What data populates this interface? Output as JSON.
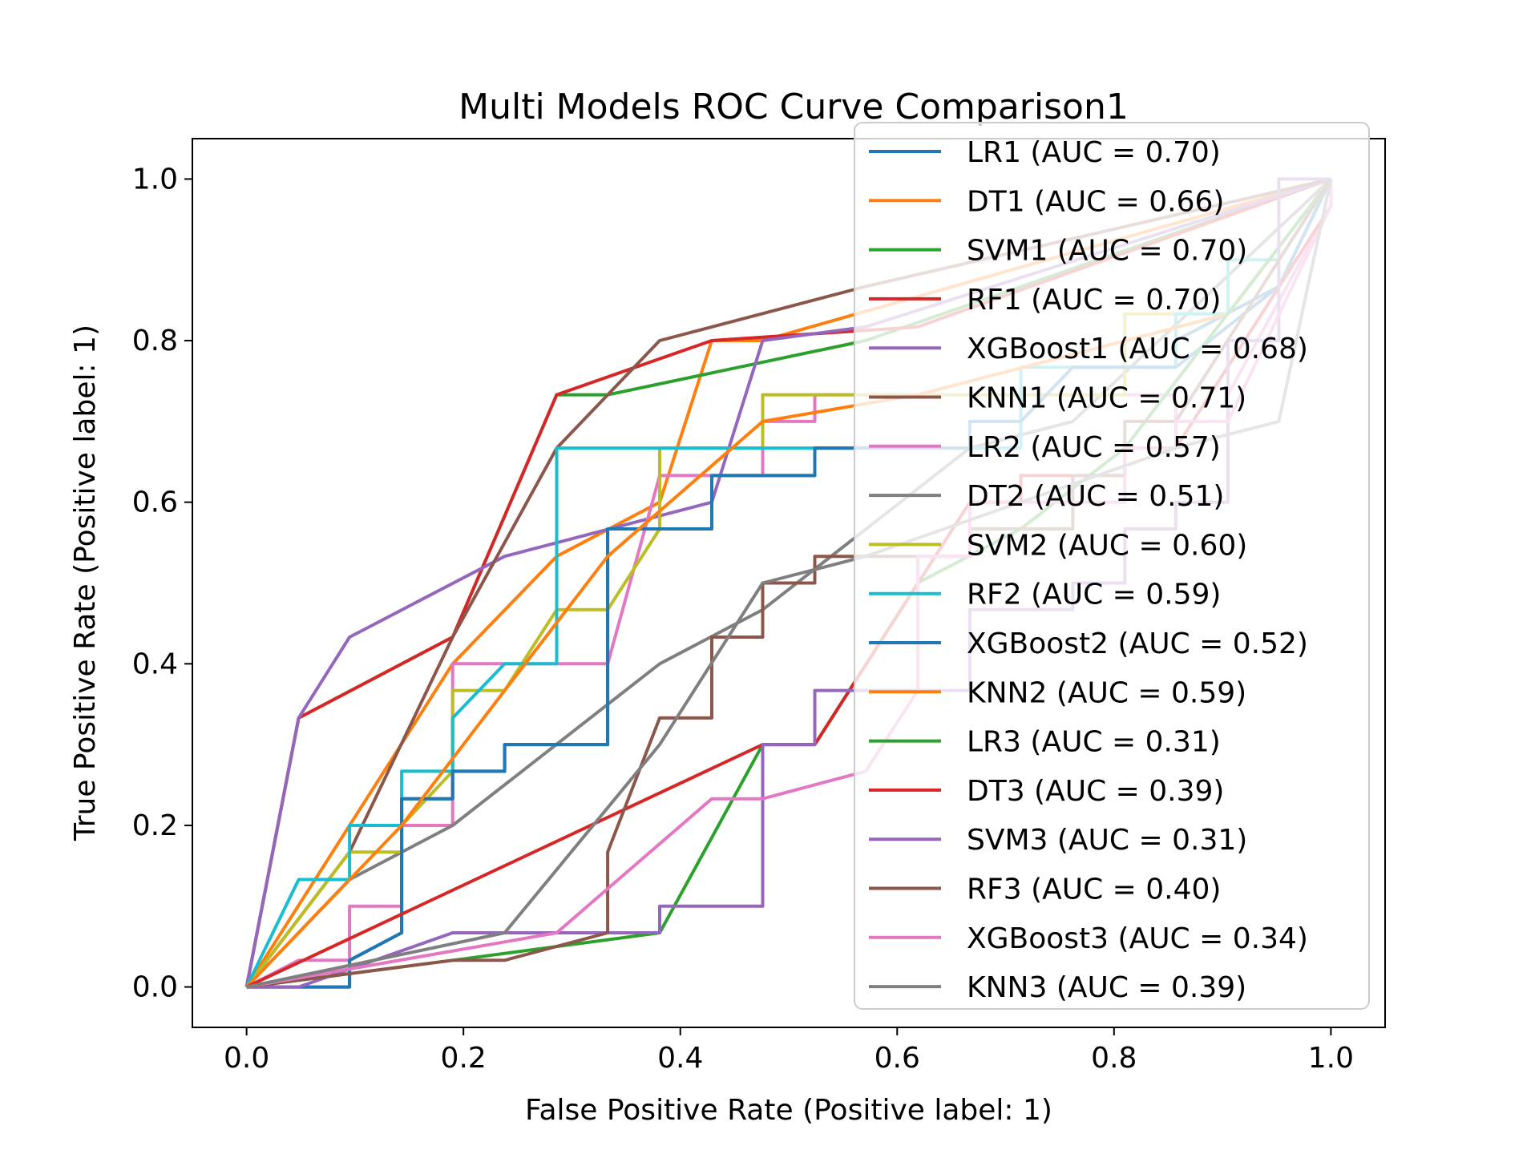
{
  "chart_data": {
    "type": "line",
    "title": "Multi Models ROC Curve Comparison1",
    "xlabel": "False Positive Rate (Positive label: 1)",
    "ylabel": "True Positive Rate (Positive label: 1)",
    "xlim": [
      -0.05,
      1.05
    ],
    "ylim": [
      -0.05,
      1.05
    ],
    "xticks": [
      "0.0",
      "0.2",
      "0.4",
      "0.6",
      "0.8",
      "1.0"
    ],
    "yticks": [
      "0.0",
      "0.2",
      "0.4",
      "0.6",
      "0.8",
      "1.0"
    ],
    "grid": false,
    "legend_position": "upper-right",
    "series": [
      {
        "name": "LR1 (AUC = 0.70)",
        "color": "#1f77b4",
        "points": [
          [
            0,
            0
          ],
          [
            0.048,
            0
          ],
          [
            0.095,
            0
          ],
          [
            0.095,
            0.033
          ],
          [
            0.143,
            0.067
          ],
          [
            0.143,
            0.233
          ],
          [
            0.19,
            0.233
          ],
          [
            0.19,
            0.267
          ],
          [
            0.238,
            0.267
          ],
          [
            0.238,
            0.3
          ],
          [
            0.333,
            0.3
          ],
          [
            0.333,
            0.567
          ],
          [
            0.429,
            0.567
          ],
          [
            0.429,
            0.633
          ],
          [
            0.524,
            0.633
          ],
          [
            0.524,
            0.667
          ],
          [
            0.714,
            0.667
          ],
          [
            0.714,
            0.7
          ],
          [
            0.762,
            0.767
          ],
          [
            0.857,
            0.767
          ],
          [
            0.857,
            0.8
          ],
          [
            0.952,
            0.867
          ],
          [
            1,
            1
          ]
        ]
      },
      {
        "name": "DT1 (AUC = 0.66)",
        "color": "#ff7f0e",
        "points": [
          [
            0,
            0
          ],
          [
            0.095,
            0.2
          ],
          [
            0.19,
            0.4
          ],
          [
            0.286,
            0.533
          ],
          [
            0.381,
            0.6
          ],
          [
            0.429,
            0.8
          ],
          [
            0.476,
            0.8
          ],
          [
            0.476,
            0.8
          ],
          [
            1,
            1
          ]
        ]
      },
      {
        "name": "SVM1 (AUC = 0.70)",
        "color": "#2ca02c",
        "points": [
          [
            0,
            0
          ],
          [
            0.048,
            0.333
          ],
          [
            0.19,
            0.433
          ],
          [
            0.286,
            0.733
          ],
          [
            0.333,
            0.733
          ],
          [
            0.571,
            0.8
          ],
          [
            1,
            1
          ]
        ]
      },
      {
        "name": "RF1 (AUC = 0.70)",
        "color": "#d62728",
        "points": [
          [
            0,
            0
          ],
          [
            0.048,
            0.333
          ],
          [
            0.19,
            0.433
          ],
          [
            0.286,
            0.733
          ],
          [
            0.429,
            0.8
          ],
          [
            0.619,
            0.817
          ],
          [
            1,
            1
          ]
        ]
      },
      {
        "name": "XGBoost1 (AUC = 0.68)",
        "color": "#9467bd",
        "points": [
          [
            0,
            0
          ],
          [
            0.048,
            0.333
          ],
          [
            0.095,
            0.433
          ],
          [
            0.238,
            0.533
          ],
          [
            0.429,
            0.6
          ],
          [
            0.476,
            0.8
          ],
          [
            0.571,
            0.817
          ],
          [
            1,
            1
          ]
        ]
      },
      {
        "name": "KNN1 (AUC = 0.71)",
        "color": "#8c564b",
        "points": [
          [
            0,
            0
          ],
          [
            0.095,
            0.167
          ],
          [
            0.19,
            0.433
          ],
          [
            0.286,
            0.667
          ],
          [
            0.381,
            0.8
          ],
          [
            0.571,
            0.867
          ],
          [
            1,
            1
          ]
        ]
      },
      {
        "name": "LR2 (AUC = 0.57)",
        "color": "#e377c2",
        "points": [
          [
            0,
            0
          ],
          [
            0.048,
            0.033
          ],
          [
            0.095,
            0.033
          ],
          [
            0.095,
            0.1
          ],
          [
            0.143,
            0.1
          ],
          [
            0.143,
            0.2
          ],
          [
            0.19,
            0.2
          ],
          [
            0.19,
            0.4
          ],
          [
            0.333,
            0.4
          ],
          [
            0.381,
            0.633
          ],
          [
            0.476,
            0.633
          ],
          [
            0.476,
            0.7
          ],
          [
            0.524,
            0.7
          ],
          [
            0.524,
            0.733
          ],
          [
            0.857,
            0.733
          ],
          [
            0.857,
            0.7
          ],
          [
            0.905,
            0.7
          ],
          [
            0.905,
            0.733
          ],
          [
            1,
            0.967
          ],
          [
            1,
            1
          ]
        ]
      },
      {
        "name": "DT2 (AUC = 0.51)",
        "color": "#7f7f7f",
        "points": [
          [
            0,
            0
          ],
          [
            0.095,
            0.133
          ],
          [
            0.19,
            0.2
          ],
          [
            0.381,
            0.4
          ],
          [
            0.476,
            0.467
          ],
          [
            0.667,
            0.667
          ],
          [
            0.762,
            0.7
          ],
          [
            1,
            1
          ]
        ]
      },
      {
        "name": "SVM2 (AUC = 0.60)",
        "color": "#bcbd22",
        "points": [
          [
            0,
            0
          ],
          [
            0.095,
            0.167
          ],
          [
            0.143,
            0.167
          ],
          [
            0.143,
            0.2
          ],
          [
            0.19,
            0.267
          ],
          [
            0.19,
            0.367
          ],
          [
            0.238,
            0.367
          ],
          [
            0.286,
            0.467
          ],
          [
            0.333,
            0.467
          ],
          [
            0.381,
            0.567
          ],
          [
            0.381,
            0.667
          ],
          [
            0.476,
            0.667
          ],
          [
            0.476,
            0.733
          ],
          [
            0.81,
            0.733
          ],
          [
            0.81,
            0.833
          ],
          [
            0.905,
            0.833
          ],
          [
            1,
            1
          ]
        ]
      },
      {
        "name": "RF2 (AUC = 0.59)",
        "color": "#17becf",
        "points": [
          [
            0,
            0
          ],
          [
            0.048,
            0.133
          ],
          [
            0.095,
            0.133
          ],
          [
            0.095,
            0.2
          ],
          [
            0.143,
            0.2
          ],
          [
            0.143,
            0.267
          ],
          [
            0.19,
            0.267
          ],
          [
            0.19,
            0.333
          ],
          [
            0.238,
            0.4
          ],
          [
            0.286,
            0.4
          ],
          [
            0.286,
            0.667
          ],
          [
            0.714,
            0.667
          ],
          [
            0.714,
            0.767
          ],
          [
            0.857,
            0.767
          ],
          [
            0.857,
            0.833
          ],
          [
            0.905,
            0.833
          ],
          [
            0.905,
            0.9
          ],
          [
            0.952,
            0.9
          ],
          [
            1,
            1
          ]
        ]
      },
      {
        "name": "XGBoost2 (AUC = 0.52)",
        "color": "#1f77b4",
        "points": [
          [
            0,
            0
          ],
          [
            0.048,
            0
          ],
          [
            0.095,
            0
          ],
          [
            0.095,
            0.033
          ],
          [
            0.143,
            0.067
          ],
          [
            0.143,
            0.233
          ],
          [
            0.19,
            0.233
          ],
          [
            0.19,
            0.267
          ],
          [
            0.238,
            0.267
          ],
          [
            0.238,
            0.3
          ],
          [
            0.333,
            0.3
          ],
          [
            0.333,
            0.567
          ],
          [
            0.429,
            0.567
          ],
          [
            0.429,
            0.633
          ],
          [
            0.524,
            0.633
          ],
          [
            0.524,
            0.667
          ],
          [
            0.667,
            0.667
          ],
          [
            0.667,
            0.7
          ],
          [
            0.714,
            0.7
          ],
          [
            0.762,
            0.767
          ],
          [
            0.857,
            0.767
          ],
          [
            0.952,
            0.867
          ],
          [
            1,
            1
          ]
        ]
      },
      {
        "name": "KNN2 (AUC = 0.59)",
        "color": "#ff7f0e",
        "points": [
          [
            0,
            0
          ],
          [
            0.143,
            0.2
          ],
          [
            0.238,
            0.367
          ],
          [
            0.333,
            0.533
          ],
          [
            0.476,
            0.7
          ],
          [
            0.619,
            0.733
          ],
          [
            0.905,
            0.833
          ],
          [
            1,
            1
          ]
        ]
      },
      {
        "name": "LR3 (AUC = 0.31)",
        "color": "#2ca02c",
        "points": [
          [
            0,
            0
          ],
          [
            0.19,
            0.033
          ],
          [
            0.381,
            0.067
          ],
          [
            0.476,
            0.3
          ],
          [
            0.524,
            0.3
          ],
          [
            0.619,
            0.5
          ],
          [
            0.714,
            0.567
          ],
          [
            0.81,
            0.667
          ],
          [
            1,
            1
          ]
        ]
      },
      {
        "name": "DT3 (AUC = 0.39)",
        "color": "#d62728",
        "points": [
          [
            0,
            0
          ],
          [
            0.476,
            0.3
          ],
          [
            0.524,
            0.3
          ],
          [
            0.667,
            0.6
          ],
          [
            0.714,
            0.6
          ],
          [
            0.714,
            0.633
          ],
          [
            0.81,
            0.633
          ],
          [
            0.81,
            0.667
          ],
          [
            0.857,
            0.667
          ],
          [
            1,
            0.967
          ]
        ]
      },
      {
        "name": "SVM3 (AUC = 0.31)",
        "color": "#9467bd",
        "points": [
          [
            0,
            0
          ],
          [
            0.048,
            0
          ],
          [
            0.19,
            0.067
          ],
          [
            0.381,
            0.067
          ],
          [
            0.381,
            0.1
          ],
          [
            0.476,
            0.1
          ],
          [
            0.476,
            0.3
          ],
          [
            0.524,
            0.3
          ],
          [
            0.524,
            0.367
          ],
          [
            0.667,
            0.367
          ],
          [
            0.667,
            0.467
          ],
          [
            0.762,
            0.467
          ],
          [
            0.762,
            0.5
          ],
          [
            0.81,
            0.5
          ],
          [
            0.81,
            0.567
          ],
          [
            0.857,
            0.567
          ],
          [
            0.857,
            0.6
          ],
          [
            0.905,
            0.6
          ],
          [
            0.905,
            0.8
          ],
          [
            0.952,
            0.8
          ],
          [
            0.952,
            1
          ],
          [
            1,
            1
          ]
        ]
      },
      {
        "name": "RF3 (AUC = 0.40)",
        "color": "#8c564b",
        "points": [
          [
            0,
            0
          ],
          [
            0.19,
            0.033
          ],
          [
            0.238,
            0.033
          ],
          [
            0.333,
            0.067
          ],
          [
            0.333,
            0.167
          ],
          [
            0.381,
            0.333
          ],
          [
            0.429,
            0.333
          ],
          [
            0.429,
            0.433
          ],
          [
            0.476,
            0.433
          ],
          [
            0.476,
            0.5
          ],
          [
            0.524,
            0.5
          ],
          [
            0.524,
            0.533
          ],
          [
            0.667,
            0.533
          ],
          [
            0.667,
            0.567
          ],
          [
            0.762,
            0.567
          ],
          [
            0.762,
            0.633
          ],
          [
            0.81,
            0.633
          ],
          [
            0.81,
            0.7
          ],
          [
            0.857,
            0.7
          ],
          [
            1,
            1
          ]
        ]
      },
      {
        "name": "XGBoost3 (AUC = 0.34)",
        "color": "#e377c2",
        "points": [
          [
            0,
            0
          ],
          [
            0.286,
            0.067
          ],
          [
            0.429,
            0.233
          ],
          [
            0.476,
            0.233
          ],
          [
            0.571,
            0.267
          ],
          [
            0.619,
            0.367
          ],
          [
            0.619,
            0.533
          ],
          [
            0.667,
            0.533
          ],
          [
            0.667,
            0.6
          ],
          [
            0.81,
            0.6
          ],
          [
            0.81,
            0.667
          ],
          [
            0.857,
            0.667
          ],
          [
            0.857,
            0.7
          ],
          [
            0.905,
            0.7
          ],
          [
            1,
            0.967
          ]
        ]
      },
      {
        "name": "KNN3 (AUC = 0.39)",
        "color": "#7f7f7f",
        "points": [
          [
            0,
            0
          ],
          [
            0.238,
            0.067
          ],
          [
            0.381,
            0.3
          ],
          [
            0.476,
            0.5
          ],
          [
            0.571,
            0.533
          ],
          [
            0.857,
            0.667
          ],
          [
            0.952,
            0.7
          ],
          [
            1,
            1
          ]
        ]
      }
    ]
  }
}
